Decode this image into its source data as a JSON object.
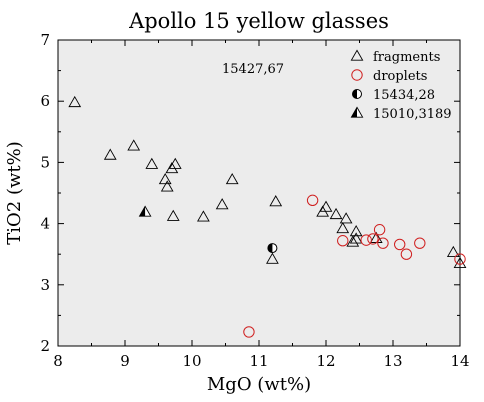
{
  "chart_data": {
    "type": "scatter",
    "title": "Apollo 15 yellow glasses",
    "xlabel": "MgO (wt%)",
    "ylabel": "TiO2 (wt%)",
    "xlim": [
      8,
      14
    ],
    "ylim": [
      2,
      7
    ],
    "xticks": [
      8,
      9,
      10,
      11,
      12,
      13,
      14
    ],
    "yticks": [
      2,
      3,
      4,
      5,
      6,
      7
    ],
    "grid": false,
    "background_color": "#ececec",
    "legend_position": "top-right",
    "annotation": "15427,67",
    "series": [
      {
        "name": "fragments",
        "marker": "open-triangle",
        "color": "#000000",
        "points": [
          [
            8.25,
            5.98
          ],
          [
            8.78,
            5.12
          ],
          [
            9.13,
            5.27
          ],
          [
            9.4,
            4.97
          ],
          [
            9.6,
            4.72
          ],
          [
            9.63,
            4.6
          ],
          [
            9.7,
            4.9
          ],
          [
            9.75,
            4.97
          ],
          [
            9.72,
            4.12
          ],
          [
            10.17,
            4.11
          ],
          [
            10.45,
            4.31
          ],
          [
            10.6,
            4.72
          ],
          [
            11.2,
            3.42
          ],
          [
            11.25,
            4.36
          ],
          [
            11.95,
            4.19
          ],
          [
            12.0,
            4.27
          ],
          [
            12.15,
            4.15
          ],
          [
            12.25,
            3.92
          ],
          [
            12.3,
            4.08
          ],
          [
            12.4,
            3.7
          ],
          [
            12.45,
            3.87
          ],
          [
            12.45,
            3.75
          ],
          [
            12.75,
            3.76
          ],
          [
            13.9,
            3.53
          ],
          [
            14.0,
            3.35
          ]
        ]
      },
      {
        "name": "droplets",
        "marker": "open-circle",
        "color": "#d02020",
        "points": [
          [
            10.85,
            2.23
          ],
          [
            11.8,
            4.38
          ],
          [
            12.25,
            3.72
          ],
          [
            12.6,
            3.73
          ],
          [
            12.7,
            3.75
          ],
          [
            12.8,
            3.9
          ],
          [
            12.85,
            3.68
          ],
          [
            13.1,
            3.66
          ],
          [
            13.2,
            3.5
          ],
          [
            13.4,
            3.68
          ],
          [
            14.0,
            3.42
          ]
        ]
      },
      {
        "name": "15434,28",
        "marker": "half-filled-circle",
        "color": "#000000",
        "points": [
          [
            11.2,
            3.6
          ]
        ]
      },
      {
        "name": "15010,3189",
        "marker": "half-filled-triangle",
        "color": "#000000",
        "points": [
          [
            9.3,
            4.19
          ]
        ]
      }
    ]
  }
}
